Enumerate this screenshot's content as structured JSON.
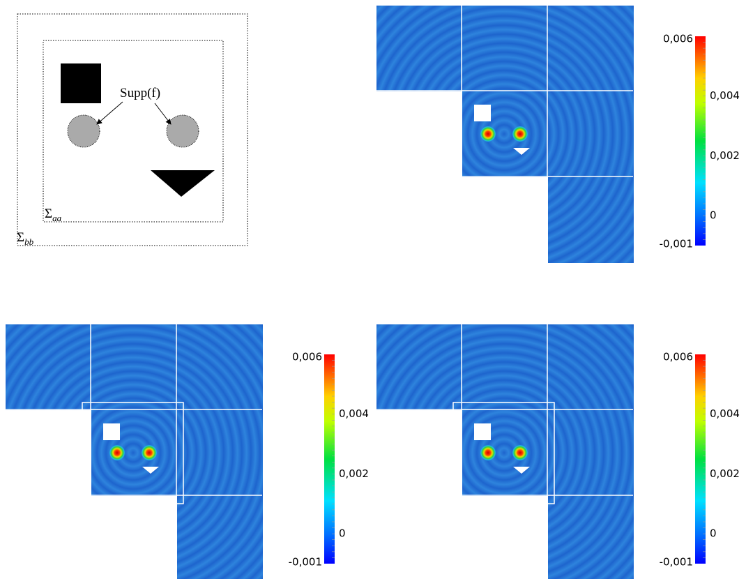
{
  "diagram": {
    "support_label": "Supp(f)",
    "inner_boundary": {
      "symbol": "Σ",
      "subscript": "aa"
    },
    "outer_boundary": {
      "symbol": "Σ",
      "subscript": "bb"
    }
  },
  "colorbars": [
    {
      "labels": [
        "0,006",
        "0,004",
        "0,002",
        "0",
        "-0,001"
      ]
    },
    {
      "labels": [
        "0,006",
        "0,004",
        "0,002",
        "0",
        "-0,001"
      ]
    },
    {
      "labels": [
        "0,006",
        "0,004",
        "0,002",
        "0",
        "-0,001"
      ]
    }
  ]
}
